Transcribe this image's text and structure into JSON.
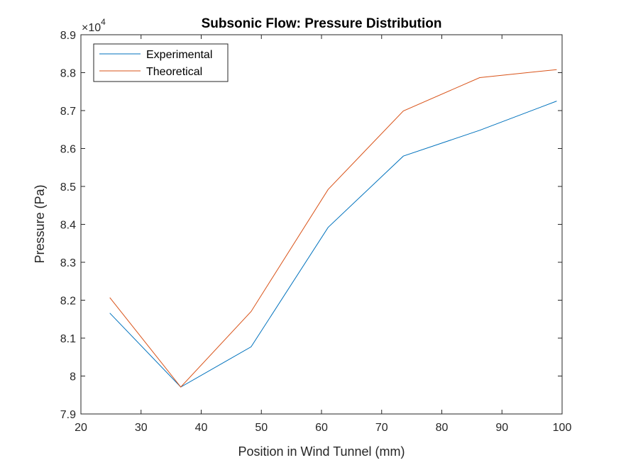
{
  "chart_data": {
    "type": "line",
    "title": "Subsonic Flow: Pressure Distribution",
    "xlabel": "Position in Wind Tunnel (mm)",
    "ylabel": "Pressure (Pa)",
    "xlim": [
      20,
      100
    ],
    "ylim": [
      79000,
      89000
    ],
    "x_ticks": [
      20,
      30,
      40,
      50,
      60,
      70,
      80,
      90,
      100
    ],
    "x_tick_labels": [
      "20",
      "30",
      "40",
      "50",
      "60",
      "70",
      "80",
      "90",
      "100"
    ],
    "y_ticks": [
      79000,
      80000,
      81000,
      82000,
      83000,
      84000,
      85000,
      86000,
      87000,
      88000,
      89000
    ],
    "y_tick_labels": [
      "7.9",
      "8",
      "8.1",
      "8.2",
      "8.3",
      "8.4",
      "8.5",
      "8.6",
      "8.7",
      "8.8",
      "8.9"
    ],
    "y_exponent_base": "×10",
    "y_exponent_power": "4",
    "grid": false,
    "legend_position": "top-left",
    "x": [
      24.8,
      36.6,
      48.3,
      61.1,
      73.6,
      86.3,
      99.1
    ],
    "series": [
      {
        "name": "Experimental",
        "color": "#0072BD",
        "values": [
          81660,
          79710,
          80770,
          83920,
          85800,
          86480,
          87250
        ]
      },
      {
        "name": "Theoretical",
        "color": "#D95319",
        "values": [
          82070,
          79710,
          81700,
          84920,
          86990,
          87870,
          88080
        ]
      }
    ]
  }
}
